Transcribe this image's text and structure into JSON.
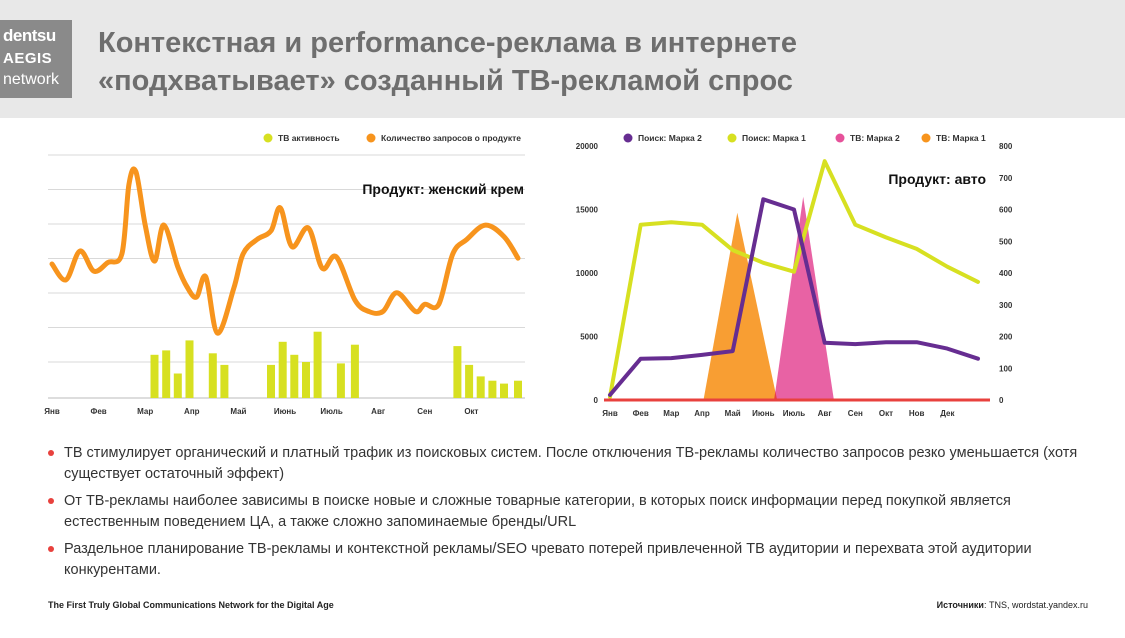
{
  "logo": {
    "line1": "dentsu",
    "line2": "AEGIS",
    "line3": "network"
  },
  "title": {
    "line1": "Контекстная и performance-реклама в интернете",
    "line2": "«подхватывает» созданный ТВ-рекламой спрос"
  },
  "colors": {
    "orange": "#f7941d",
    "lime": "#d7e021",
    "purple": "#662d91",
    "pink": "#e6519a",
    "red": "#e8413d",
    "grid": "#d9d9d9"
  },
  "chart_data": [
    {
      "type": "line",
      "title": "Продукт: женский крем",
      "legend_position": "top-right",
      "grid": true,
      "categories": [
        "Янв",
        "Фев",
        "Мар",
        "Апр",
        "Май",
        "Июнь",
        "Июль",
        "Авг",
        "Сен",
        "Окт"
      ],
      "series": [
        {
          "name": "ТВ активность",
          "type": "bar",
          "color": "#d7e021",
          "points": [
            [
              2.2,
              3.0
            ],
            [
              2.45,
              3.3
            ],
            [
              2.7,
              1.7
            ],
            [
              2.95,
              4.0
            ],
            [
              3.45,
              3.1
            ],
            [
              3.7,
              2.3
            ],
            [
              4.7,
              2.3
            ],
            [
              4.95,
              3.9
            ],
            [
              5.2,
              3.0
            ],
            [
              5.45,
              2.5
            ],
            [
              5.7,
              4.6
            ],
            [
              6.2,
              2.4
            ],
            [
              6.5,
              3.7
            ],
            [
              8.7,
              3.6
            ],
            [
              8.95,
              2.3
            ],
            [
              9.2,
              1.5
            ],
            [
              9.45,
              1.2
            ],
            [
              9.7,
              1.0
            ],
            [
              10.0,
              1.2
            ]
          ]
        },
        {
          "name": "Количество запросов о продукте",
          "type": "line",
          "color": "#f7941d",
          "points": [
            [
              0,
              9.3
            ],
            [
              0.3,
              8.2
            ],
            [
              0.6,
              10.2
            ],
            [
              0.9,
              8.8
            ],
            [
              1.2,
              9.4
            ],
            [
              1.5,
              10.0
            ],
            [
              1.65,
              14.8
            ],
            [
              1.8,
              15.7
            ],
            [
              2.0,
              12.0
            ],
            [
              2.2,
              9.5
            ],
            [
              2.4,
              12.0
            ],
            [
              2.7,
              9.1
            ],
            [
              2.9,
              7.7
            ],
            [
              3.1,
              7.0
            ],
            [
              3.3,
              8.4
            ],
            [
              3.55,
              4.5
            ],
            [
              3.9,
              7.6
            ],
            [
              4.1,
              10.0
            ],
            [
              4.4,
              11.0
            ],
            [
              4.7,
              11.6
            ],
            [
              4.9,
              13.2
            ],
            [
              5.15,
              10.5
            ],
            [
              5.5,
              11.8
            ],
            [
              5.8,
              9.0
            ],
            [
              6.1,
              9.8
            ],
            [
              6.5,
              6.8
            ],
            [
              6.8,
              6.0
            ],
            [
              7.1,
              6.0
            ],
            [
              7.4,
              7.3
            ],
            [
              7.8,
              6.0
            ],
            [
              8.0,
              6.5
            ],
            [
              8.3,
              6.5
            ],
            [
              8.6,
              10.0
            ],
            [
              8.9,
              11.0
            ],
            [
              9.3,
              12.0
            ],
            [
              9.7,
              11.2
            ],
            [
              10.0,
              9.7
            ]
          ]
        }
      ]
    },
    {
      "type": "line",
      "title": "Продукт: авто",
      "legend_position": "top",
      "grid": true,
      "categories": [
        "Янв",
        "Фев",
        "Мар",
        "Апр",
        "Май",
        "Июнь",
        "Июль",
        "Авг",
        "Сен",
        "Окт",
        "Нов",
        "Дек"
      ],
      "y_left_ticks": [
        "0",
        "5000",
        "10000",
        "15000",
        "20000"
      ],
      "y_right_ticks": [
        "0",
        "100",
        "200",
        "300",
        "400",
        "500",
        "600",
        "700",
        "800"
      ],
      "ylim": [
        0,
        20000
      ],
      "y2lim": [
        0,
        800
      ],
      "series": [
        {
          "name": "Поиск: Марка 2",
          "type": "line",
          "axis": "left",
          "color": "#662d91",
          "points": [
            [
              0,
              400
            ],
            [
              1,
              3250
            ],
            [
              2,
              3300
            ],
            [
              3,
              3550
            ],
            [
              4,
              3850
            ],
            [
              5,
              15800
            ],
            [
              6,
              15000
            ],
            [
              7,
              4500
            ],
            [
              8,
              4400
            ],
            [
              9,
              4550
            ],
            [
              10,
              4550
            ],
            [
              11,
              4050
            ],
            [
              12,
              3250
            ]
          ]
        },
        {
          "name": "Поиск: Марка 1",
          "type": "line",
          "axis": "left",
          "color": "#d7e021",
          "points": [
            [
              0,
              250
            ],
            [
              1,
              13800
            ],
            [
              2,
              14000
            ],
            [
              3,
              13800
            ],
            [
              4,
              11800
            ],
            [
              5,
              10800
            ],
            [
              6,
              10100
            ],
            [
              7,
              18800
            ],
            [
              8,
              13800
            ],
            [
              9,
              12800
            ],
            [
              10,
              11900
            ],
            [
              11,
              10500
            ],
            [
              12,
              9300
            ]
          ]
        },
        {
          "name": "ТВ: Марка 2",
          "type": "area",
          "axis": "right",
          "color": "#e6519a",
          "points": [
            [
              5.35,
              0
            ],
            [
              6.3,
              640
            ],
            [
              7.3,
              0
            ]
          ]
        },
        {
          "name": "ТВ: Марка 1",
          "type": "area",
          "axis": "right",
          "color": "#f7941d",
          "points": [
            [
              3.05,
              0
            ],
            [
              4.15,
              590
            ],
            [
              5.45,
              0
            ]
          ]
        }
      ]
    }
  ],
  "bullets": [
    "ТВ стимулирует органический и платный трафик из поисковых систем. После отключения ТВ-рекламы количество запросов резко уменьшается (хотя существует остаточный эффект)",
    "От ТВ-рекламы наиболее зависимы в поиске новые и сложные товарные категории, в которых поиск информации перед покупкой является естественным поведением ЦА, а также сложно запоминаемые бренды/URL",
    "Раздельное планирование ТВ-рекламы и контекстной рекламы/SEO чревато потерей привлеченной ТВ аудитории и перехвата этой аудитории конкурентами."
  ],
  "footer": {
    "left": "The First Truly Global Communications Network for the Digital Age",
    "sources_label": "Источники",
    "sources_text": ": TNS, wordstat.yandex.ru"
  }
}
